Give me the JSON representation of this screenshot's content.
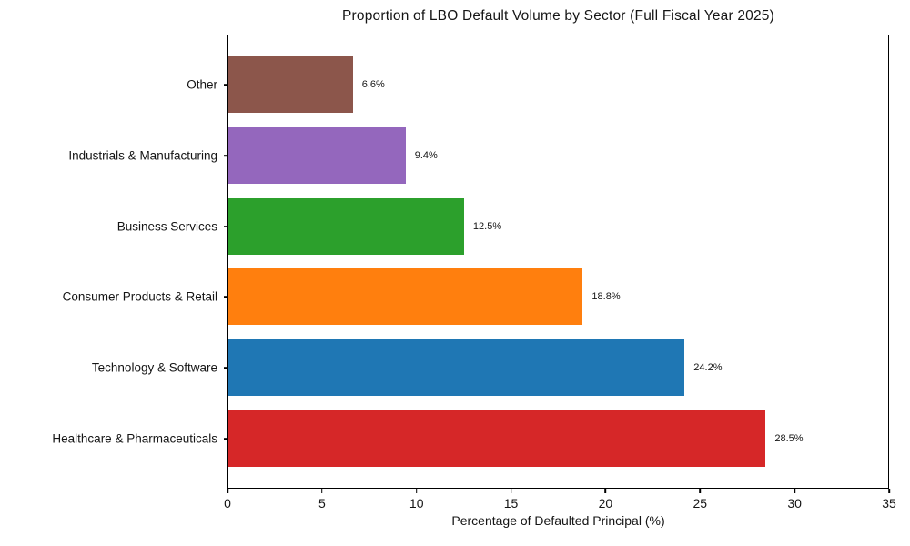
{
  "chart_data": {
    "type": "bar",
    "orientation": "horizontal",
    "title": "Proportion of LBO Default Volume by Sector (Full Fiscal Year 2025)",
    "xlabel": "Percentage of Defaulted Principal (%)",
    "ylabel": "",
    "categories": [
      "Other",
      "Industrials & Manufacturing",
      "Business Services",
      "Consumer Products & Retail",
      "Technology & Software",
      "Healthcare & Pharmaceuticals"
    ],
    "values": [
      6.6,
      9.4,
      12.5,
      18.8,
      24.2,
      28.5
    ],
    "value_labels": [
      "6.6%",
      "9.4%",
      "12.5%",
      "18.8%",
      "24.2%",
      "28.5%"
    ],
    "bar_colors": [
      "#8c564b",
      "#9467bd",
      "#2ca02c",
      "#ff7f0e",
      "#1f77b4",
      "#d62728"
    ],
    "xlim": [
      0,
      35
    ],
    "xticks": [
      0,
      5,
      10,
      15,
      20,
      25,
      30,
      35
    ],
    "grid": false,
    "legend_position": "none",
    "axis_line_color": "#000000",
    "text_color": "#151515",
    "background_color": "#ffffff"
  }
}
